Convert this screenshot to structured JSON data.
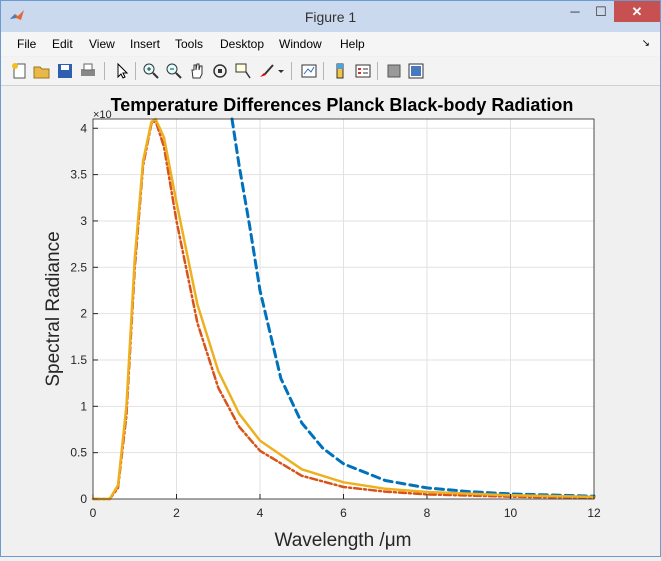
{
  "window": {
    "title": "Figure 1",
    "close_glyph": "✕",
    "minimize_glyph": "─",
    "maximize_glyph": "☐"
  },
  "menu": {
    "items": [
      "File",
      "Edit",
      "View",
      "Insert",
      "Tools",
      "Desktop",
      "Window",
      "Help"
    ],
    "overflow_glyph": "↘"
  },
  "toolbar": {
    "icons": [
      "new-figure-icon",
      "open-file-icon",
      "save-icon",
      "print-icon",
      "pointer-icon",
      "zoom-in-icon",
      "zoom-out-icon",
      "pan-icon",
      "rotate-3d-icon",
      "data-cursor-icon",
      "brush-icon",
      "link-plot-icon",
      "colorbar-icon",
      "legend-icon",
      "hide-plot-tools-icon",
      "show-plot-tools-icon"
    ]
  },
  "colors": {
    "accent": "#0072bd",
    "series2": "#d95319",
    "series3": "#edb120",
    "close": "#c75050"
  },
  "chart_data": {
    "type": "line",
    "title": "Temperature Differences Planck Black-body Radiation",
    "xlabel": "Wavelength /μm",
    "ylabel": "Spectral Radiance",
    "exponent_label": "×10",
    "xlim": [
      0,
      12
    ],
    "ylim": [
      0,
      4.1
    ],
    "xticks": [
      0,
      2,
      4,
      6,
      8,
      10,
      12
    ],
    "yticks": [
      0,
      0.5,
      1,
      1.5,
      2,
      2.5,
      3,
      3.5,
      4
    ],
    "grid": true,
    "legend": "none",
    "series": [
      {
        "color": "#0072bd",
        "style": "dashed",
        "x": [
          3.33,
          3.5,
          3.75,
          4.0,
          4.5,
          5.0,
          5.5,
          6.0,
          7.0,
          8.0,
          9.0,
          10.0,
          12.0
        ],
        "y": [
          4.1,
          3.6,
          2.95,
          2.25,
          1.3,
          0.82,
          0.55,
          0.38,
          0.2,
          0.12,
          0.08,
          0.055,
          0.03
        ]
      },
      {
        "color": "#d95319",
        "style": "dashdot",
        "x": [
          0.0,
          0.4,
          0.6,
          0.8,
          1.0,
          1.2,
          1.4,
          1.5,
          1.7,
          2.0,
          2.5,
          3.0,
          3.5,
          4.0,
          5.0,
          6.0,
          7.0,
          8.0,
          10.0,
          12.0
        ],
        "y": [
          0,
          0,
          0.12,
          0.9,
          2.5,
          3.6,
          4.05,
          4.08,
          3.8,
          3.0,
          1.9,
          1.2,
          0.78,
          0.52,
          0.25,
          0.13,
          0.08,
          0.05,
          0.025,
          0.013
        ]
      },
      {
        "color": "#edb120",
        "style": "solid",
        "x": [
          0.0,
          0.4,
          0.6,
          0.8,
          1.0,
          1.2,
          1.4,
          1.5,
          1.7,
          2.0,
          2.5,
          3.0,
          3.5,
          4.0,
          5.0,
          6.0,
          7.0,
          8.0,
          10.0,
          12.0
        ],
        "y": [
          0,
          0,
          0.15,
          1.0,
          2.6,
          3.65,
          4.07,
          4.1,
          3.9,
          3.2,
          2.1,
          1.38,
          0.92,
          0.63,
          0.32,
          0.18,
          0.11,
          0.075,
          0.04,
          0.023
        ]
      }
    ]
  }
}
